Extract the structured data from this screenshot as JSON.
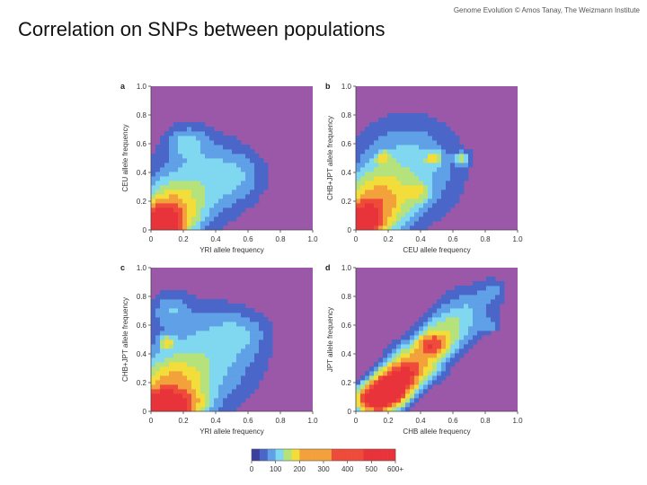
{
  "slide": {
    "title": "Correlation on SNPs between populations",
    "credit": "Genome Evolution © Amos Tanay, The Weizmann Institute"
  },
  "colors": {
    "background_field": "#9b58a8",
    "scale": [
      "#3b3f9e",
      "#4a66c8",
      "#5fa0e6",
      "#7fd7f0",
      "#b5e27a",
      "#f2dd3a",
      "#f3a13a",
      "#ee4b3a",
      "#e8333a"
    ]
  },
  "chart_data": [
    {
      "panel": "a",
      "type": "heatmap",
      "xlabel": "YRI allele frequency",
      "ylabel": "CEU allele frequency",
      "xlim": [
        0,
        1
      ],
      "ylim": [
        0,
        1
      ],
      "xticks": [
        "0",
        "0.2",
        "0.4",
        "0.6",
        "0.8",
        "1.0"
      ],
      "yticks": [
        "0",
        "0.2",
        "0.4",
        "0.6",
        "0.8",
        "1.0"
      ],
      "blobs": [
        {
          "x": 0.04,
          "y": 0.04,
          "sx": 0.09,
          "sy": 0.07,
          "w": 1.0
        },
        {
          "x": 0.12,
          "y": 0.14,
          "sx": 0.12,
          "sy": 0.12,
          "w": 0.35
        },
        {
          "x": 0.3,
          "y": 0.35,
          "sx": 0.2,
          "sy": 0.22,
          "w": 0.16
        },
        {
          "x": 0.22,
          "y": 0.62,
          "sx": 0.08,
          "sy": 0.07,
          "w": 0.1
        },
        {
          "x": 0.55,
          "y": 0.38,
          "sx": 0.12,
          "sy": 0.12,
          "w": 0.08
        }
      ]
    },
    {
      "panel": "b",
      "type": "heatmap",
      "xlabel": "CEU allele frequency",
      "ylabel": "CHB+JPT allele frequency",
      "xlim": [
        0,
        1
      ],
      "ylim": [
        0,
        1
      ],
      "xticks": [
        "0",
        "0.2",
        "0.4",
        "0.6",
        "0.8",
        "1.0"
      ],
      "yticks": [
        "0",
        "0.2",
        "0.4",
        "0.6",
        "0.8",
        "1.0"
      ],
      "blobs": [
        {
          "x": 0.04,
          "y": 0.05,
          "sx": 0.07,
          "sy": 0.08,
          "w": 0.9
        },
        {
          "x": 0.13,
          "y": 0.18,
          "sx": 0.12,
          "sy": 0.14,
          "w": 0.38
        },
        {
          "x": 0.32,
          "y": 0.42,
          "sx": 0.22,
          "sy": 0.24,
          "w": 0.18
        },
        {
          "x": 0.17,
          "y": 0.5,
          "sx": 0.03,
          "sy": 0.03,
          "w": 0.22
        },
        {
          "x": 0.48,
          "y": 0.5,
          "sx": 0.03,
          "sy": 0.03,
          "w": 0.22
        },
        {
          "x": 0.66,
          "y": 0.5,
          "sx": 0.03,
          "sy": 0.03,
          "w": 0.2
        },
        {
          "x": 0.38,
          "y": 0.26,
          "sx": 0.05,
          "sy": 0.05,
          "w": 0.15
        }
      ]
    },
    {
      "panel": "c",
      "type": "heatmap",
      "xlabel": "YRI allele frequency",
      "ylabel": "CHB+JPT allele frequency",
      "xlim": [
        0,
        1
      ],
      "ylim": [
        0,
        1
      ],
      "xticks": [
        "0",
        "0.2",
        "0.4",
        "0.6",
        "0.8",
        "1.0"
      ],
      "yticks": [
        "0",
        "0.2",
        "0.4",
        "0.6",
        "0.8",
        "1.0"
      ],
      "blobs": [
        {
          "x": 0.05,
          "y": 0.04,
          "sx": 0.13,
          "sy": 0.06,
          "w": 1.0
        },
        {
          "x": 0.12,
          "y": 0.16,
          "sx": 0.14,
          "sy": 0.13,
          "w": 0.36
        },
        {
          "x": 0.33,
          "y": 0.38,
          "sx": 0.24,
          "sy": 0.24,
          "w": 0.17
        },
        {
          "x": 0.1,
          "y": 0.48,
          "sx": 0.03,
          "sy": 0.03,
          "w": 0.22
        },
        {
          "x": 0.12,
          "y": 0.72,
          "sx": 0.08,
          "sy": 0.08,
          "w": 0.1
        },
        {
          "x": 0.55,
          "y": 0.55,
          "sx": 0.12,
          "sy": 0.1,
          "w": 0.08
        }
      ]
    },
    {
      "panel": "d",
      "type": "heatmap",
      "xlabel": "CHB allele frequency",
      "ylabel": "JPT allele frequency",
      "xlim": [
        0,
        1
      ],
      "ylim": [
        0,
        1
      ],
      "xticks": [
        "0",
        "0.2",
        "0.4",
        "0.6",
        "0.8",
        "1.0"
      ],
      "yticks": [
        "0",
        "0.2",
        "0.4",
        "0.6",
        "0.8",
        "1.0"
      ],
      "blobs": [
        {
          "x": 0.12,
          "y": 0.08,
          "sx": 0.08,
          "sy": 0.06,
          "w": 0.75
        },
        {
          "x": 0.2,
          "y": 0.15,
          "sx": 0.08,
          "sy": 0.07,
          "w": 0.75
        },
        {
          "x": 0.28,
          "y": 0.24,
          "sx": 0.08,
          "sy": 0.07,
          "w": 0.55
        },
        {
          "x": 0.38,
          "y": 0.35,
          "sx": 0.1,
          "sy": 0.09,
          "w": 0.38
        },
        {
          "x": 0.47,
          "y": 0.47,
          "sx": 0.06,
          "sy": 0.05,
          "w": 0.42
        },
        {
          "x": 0.55,
          "y": 0.55,
          "sx": 0.1,
          "sy": 0.1,
          "w": 0.22
        },
        {
          "x": 0.7,
          "y": 0.7,
          "sx": 0.12,
          "sy": 0.12,
          "w": 0.13
        },
        {
          "x": 0.85,
          "y": 0.85,
          "sx": 0.06,
          "sy": 0.06,
          "w": 0.08
        },
        {
          "x": 0.83,
          "y": 0.6,
          "sx": 0.03,
          "sy": 0.03,
          "w": 0.08
        }
      ]
    }
  ],
  "legend": {
    "ticks": [
      "0",
      "100",
      "200",
      "300",
      "400",
      "500",
      "600+"
    ]
  }
}
